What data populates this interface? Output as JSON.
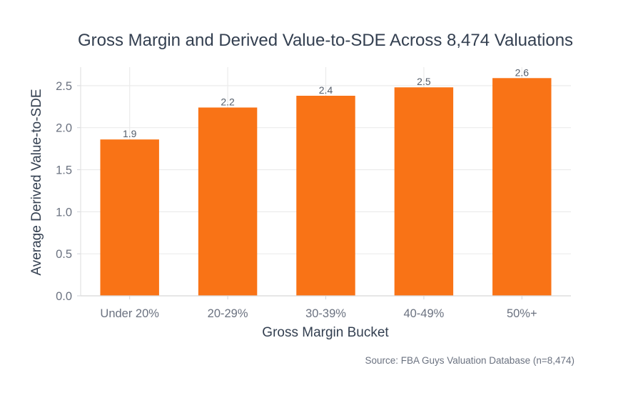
{
  "chart_data": {
    "type": "bar",
    "title": "Gross Margin and Derived Value-to-SDE Across 8,474 Valuations",
    "xlabel": "Gross Margin Bucket",
    "ylabel": "Average Derived Value-to-SDE",
    "categories": [
      "Under 20%",
      "20-29%",
      "30-39%",
      "40-49%",
      "50%+"
    ],
    "values": [
      1.86,
      2.24,
      2.38,
      2.48,
      2.59
    ],
    "data_labels": [
      "1.9",
      "2.2",
      "2.4",
      "2.5",
      "2.6"
    ],
    "yticks": [
      0,
      0.5,
      1.0,
      1.5,
      2.0,
      2.5
    ],
    "ytick_labels": [
      "0.0",
      "0.5",
      "1.0",
      "1.5",
      "2.0",
      "2.5"
    ],
    "ylim": [
      0,
      2.72
    ],
    "grid": true,
    "bar_color": "#f97316",
    "grid_color": "#ebebeb",
    "source": "Source: FBA Guys Valuation Database (n=8,474)"
  }
}
